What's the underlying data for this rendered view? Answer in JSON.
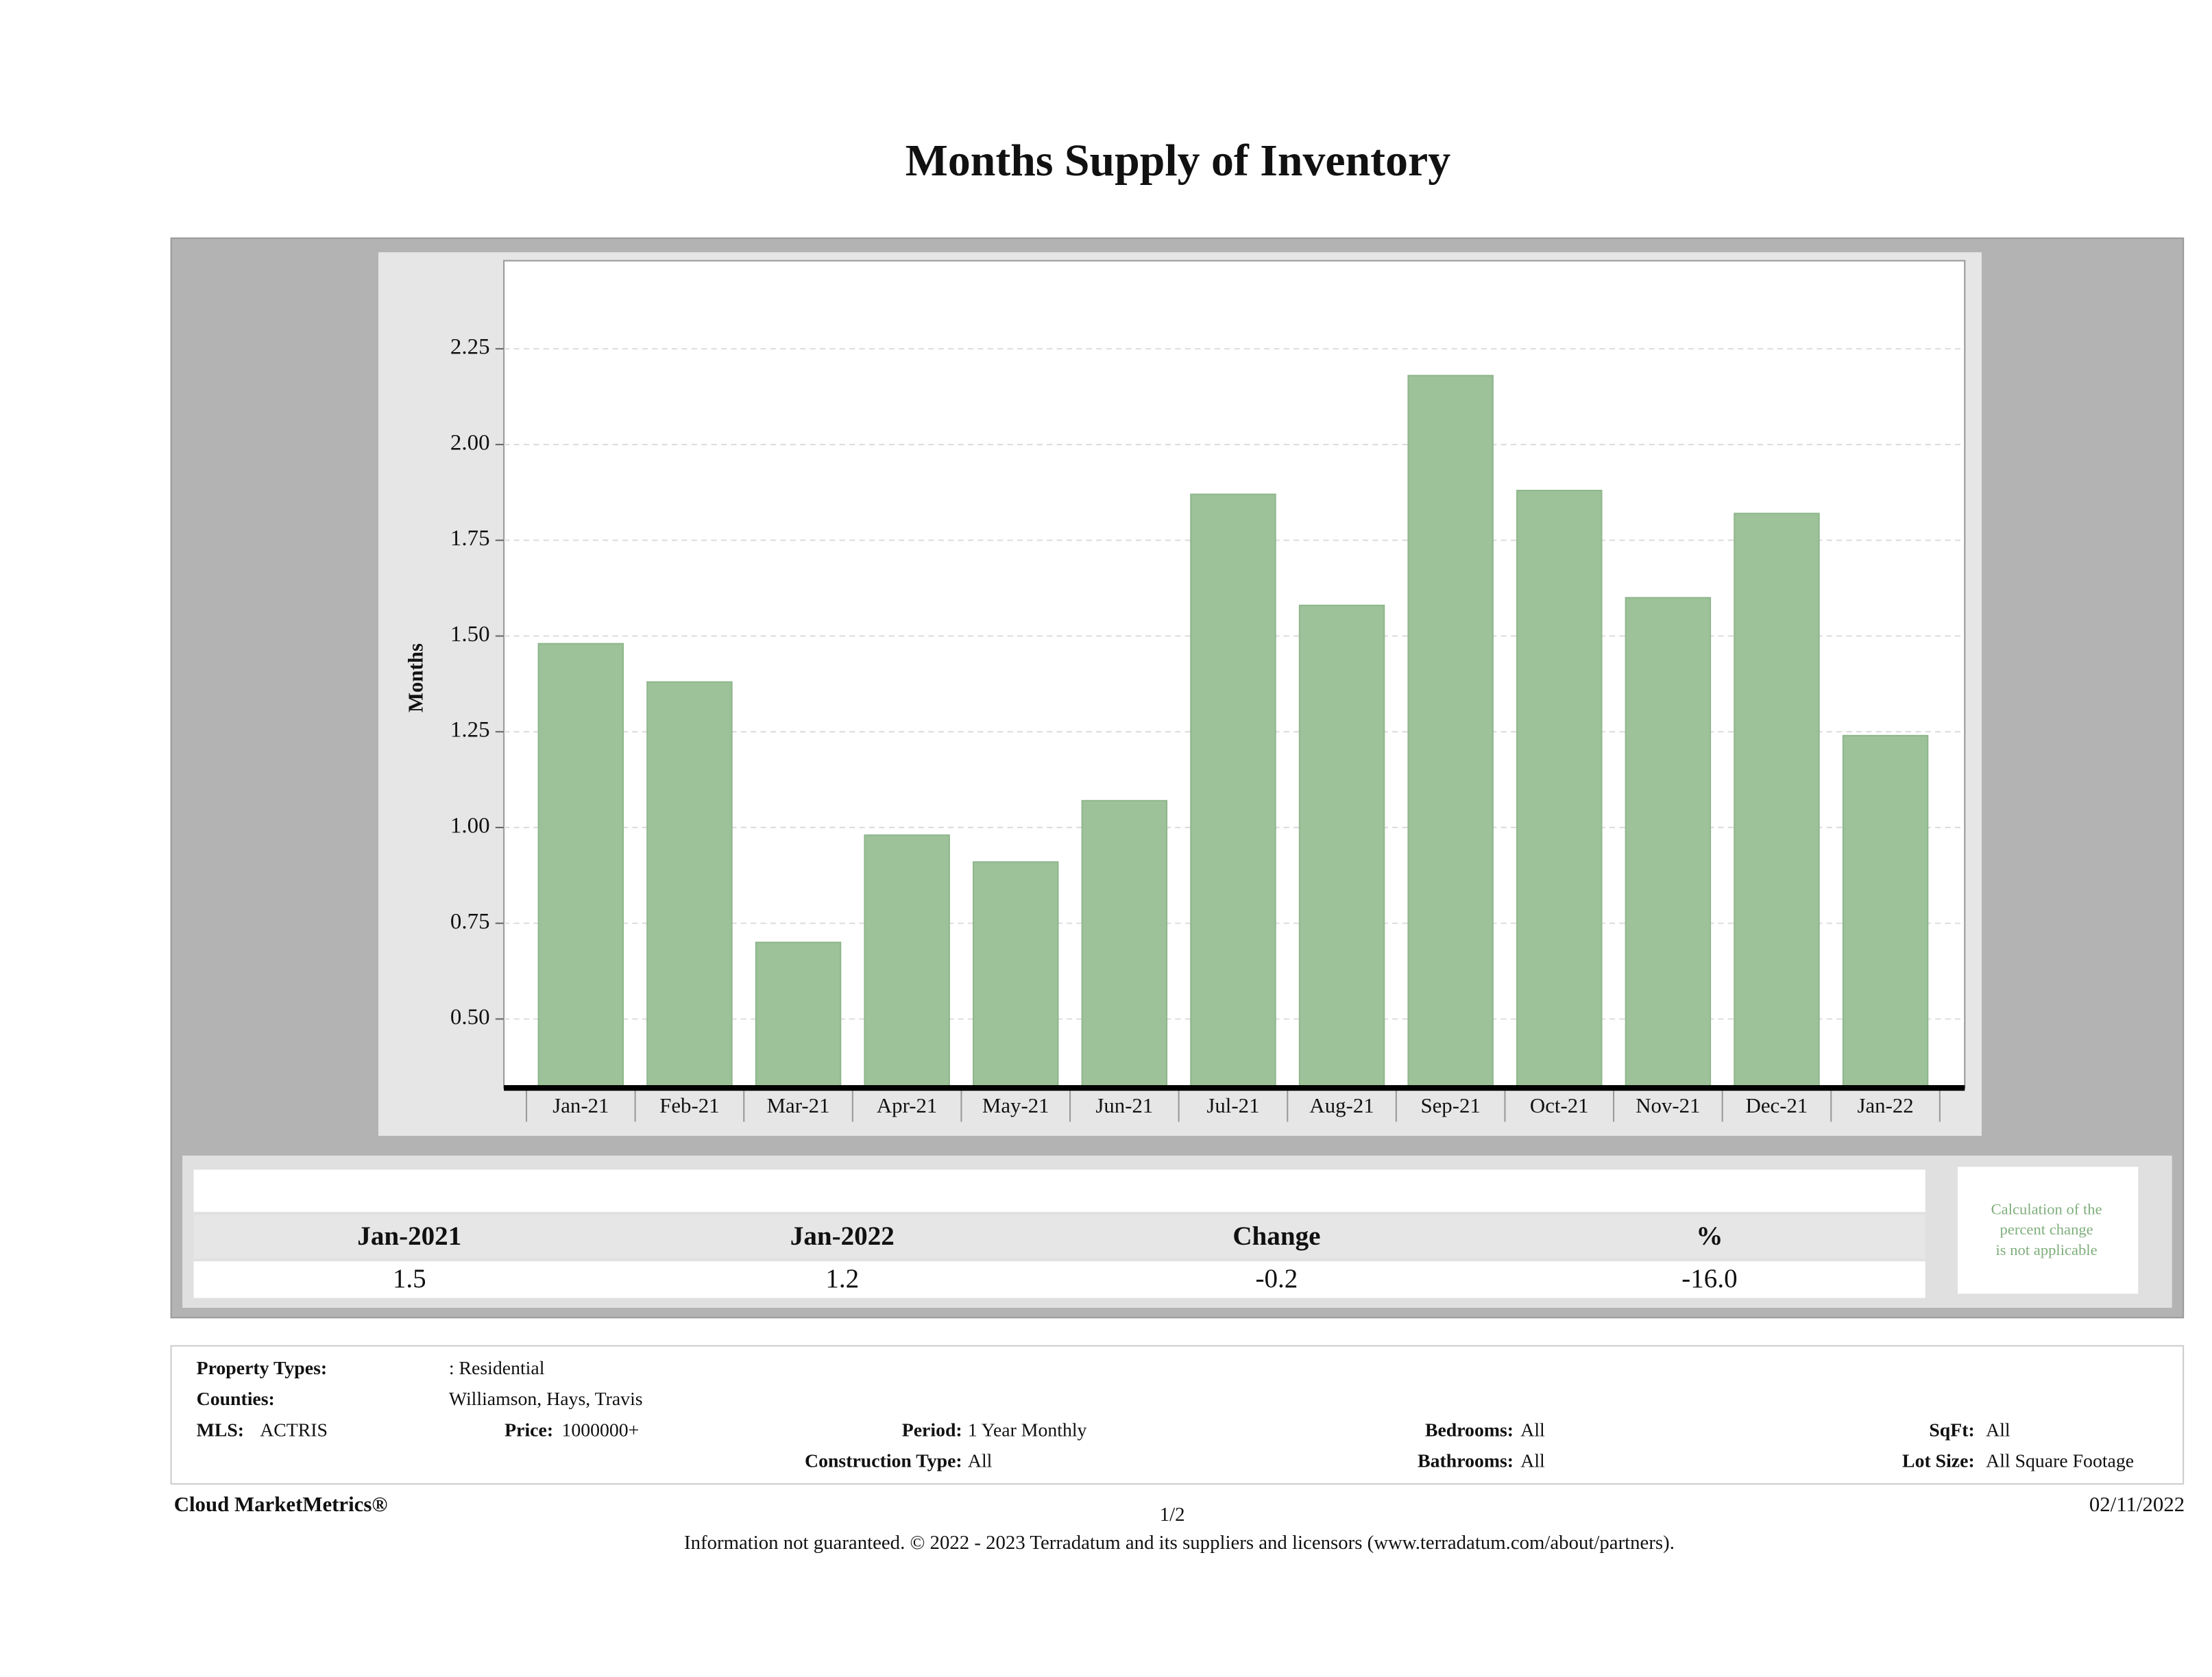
{
  "chart_data": {
    "type": "bar",
    "title": "Months Supply of Inventory",
    "y_label": "Months",
    "categories": [
      "Jan-21",
      "Feb-21",
      "Mar-21",
      "Apr-21",
      "May-21",
      "Jun-21",
      "Jul-21",
      "Aug-21",
      "Sep-21",
      "Oct-21",
      "Nov-21",
      "Dec-21",
      "Jan-22"
    ],
    "values": [
      1.48,
      1.38,
      0.7,
      0.98,
      0.91,
      1.07,
      1.87,
      1.58,
      2.18,
      1.88,
      1.6,
      1.82,
      1.24
    ],
    "color": "#9dc29a",
    "ylim": [
      0.32,
      2.48
    ],
    "yticks": [
      {
        "value": 0.5,
        "label": "0.50"
      },
      {
        "value": 0.75,
        "label": "0.75"
      },
      {
        "value": 1,
        "label": "1.00"
      },
      {
        "value": 1.25,
        "label": "1.25"
      },
      {
        "value": 1.5,
        "label": "1.50"
      },
      {
        "value": 1.75,
        "label": "1.75"
      },
      {
        "value": 2,
        "label": "2.00"
      },
      {
        "value": 2.25,
        "label": "2.25"
      }
    ],
    "grid": true
  },
  "summary": {
    "headers": [
      "Jan-2021",
      "Jan-2022",
      "Change",
      "%"
    ],
    "values": [
      "1.5",
      "1.2",
      "-0.2",
      "-16.0"
    ],
    "note": [
      "Calculation of the",
      "percent change",
      "is not applicable"
    ]
  },
  "filters": [
    {
      "label": "Property Types:",
      "value": ": Residential"
    },
    {
      "label": "Counties:",
      "value": "Williamson, Hays, Travis"
    },
    {
      "label": "MLS:",
      "value": "ACTRIS"
    },
    {
      "label": "Price:",
      "value": "1000000+"
    },
    {
      "label": "Period:",
      "value": "1 Year Monthly"
    },
    {
      "label": "Bedrooms:",
      "value": "All"
    },
    {
      "label": "SqFt:",
      "value": "All"
    },
    {
      "label": "Construction Type:",
      "value": "All"
    },
    {
      "label": "Bathrooms:",
      "value": "All"
    },
    {
      "label": "Lot Size:",
      "value": "All Square Footage"
    }
  ],
  "footer": {
    "brand": "Cloud MarketMetrics®",
    "page": "1/2",
    "date": "02/11/2022",
    "disclaimer": "Information not guaranteed. © 2022 - 2023 Terradatum and its suppliers and licensors (www.terradatum.com/about/partners)."
  }
}
